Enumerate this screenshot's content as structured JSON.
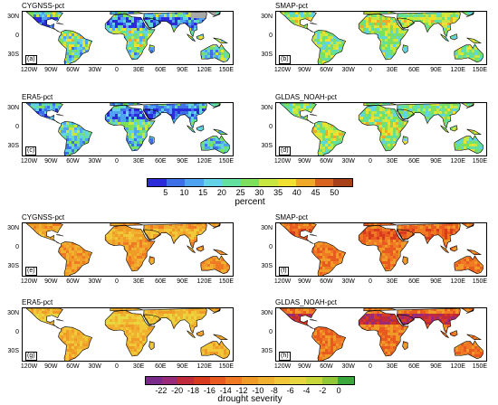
{
  "figure_top": {
    "panels": [
      {
        "id": "a",
        "title": "CYGNSS-pct",
        "label": "(a)"
      },
      {
        "id": "b",
        "title": "SMAP-pct",
        "label": "(b)"
      },
      {
        "id": "c",
        "title": "ERA5-pct",
        "label": "(c)"
      },
      {
        "id": "d",
        "title": "GLDAS_NOAH-pct",
        "label": "(d)"
      }
    ],
    "colorbar": {
      "ticks": [
        "5",
        "10",
        "15",
        "20",
        "25",
        "30",
        "35",
        "40",
        "45",
        "50"
      ],
      "title": "percent",
      "colors": [
        "#2b2bd9",
        "#3d6fe6",
        "#4fa3f0",
        "#63d2e6",
        "#63e0a0",
        "#7ee05a",
        "#c8e640",
        "#f0e030",
        "#f0a828",
        "#d86420",
        "#a8401a"
      ]
    }
  },
  "figure_bottom": {
    "panels": [
      {
        "id": "e",
        "title": "CYGNSS-pct",
        "label": "(e)"
      },
      {
        "id": "f",
        "title": "SMAP-pct",
        "label": "(f)"
      },
      {
        "id": "g",
        "title": "ERA5-pct",
        "label": "(g)"
      },
      {
        "id": "h",
        "title": "GLDAS_NOAH-pct",
        "label": "(h)"
      }
    ],
    "colorbar": {
      "ticks": [
        "-22",
        "-20",
        "-18",
        "-16",
        "-14",
        "-12",
        "-10",
        "-8",
        "-6",
        "-4",
        "-2",
        "0"
      ],
      "title": "drought severity",
      "colors": [
        "#7a2a8a",
        "#9a2a7a",
        "#c02a3a",
        "#d83a20",
        "#e85a20",
        "#f07a24",
        "#f09a28",
        "#f0b030",
        "#f0c838",
        "#e8d840",
        "#c8d838",
        "#90c838",
        "#3aa83a"
      ]
    }
  },
  "axes": {
    "lat_ticks": [
      "30N",
      "0",
      "30S"
    ],
    "lon_ticks": [
      "120W",
      "90W",
      "60W",
      "30W",
      "0",
      "30E",
      "60E",
      "90E",
      "120E",
      "150E"
    ]
  },
  "map_colors": {
    "ocean": "#ffffff",
    "nodata": "#a8a8a8",
    "coast": "#000000"
  }
}
